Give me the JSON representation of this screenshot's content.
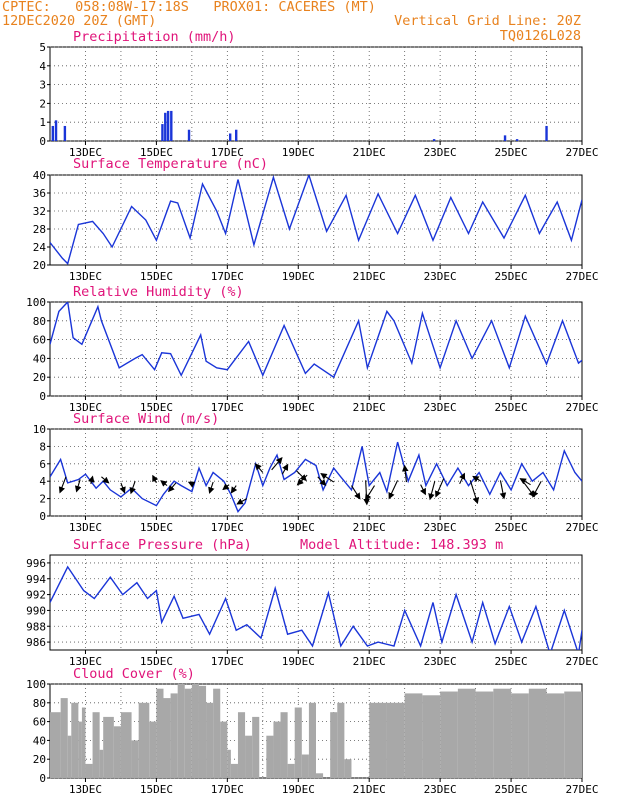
{
  "header": {
    "left_line1": "CPTEC:   058:08W-17:18S   PROX01: CACERES (MT)",
    "left_line2": "12DEC2020 20Z (GMT)",
    "right_line2": "Vertical Grid Line: 20Z",
    "right_line3": "TQ0126L028"
  },
  "colors": {
    "header": "#e8821e",
    "title": "#e0147a",
    "series": "#1a35d8",
    "cloud": "#a8a8a8",
    "arrow": "#000000"
  },
  "x_axis": {
    "ticks": [
      "13DEC",
      "15DEC",
      "17DEC",
      "19DEC",
      "21DEC",
      "23DEC",
      "25DEC",
      "27DEC"
    ],
    "days": [
      1,
      3,
      5,
      7,
      9,
      11,
      13,
      15
    ]
  },
  "chart_data": [
    {
      "type": "bar",
      "title": "Precipitation (mm/h)",
      "xlim": [
        0,
        15
      ],
      "ylim": [
        0,
        5
      ],
      "yticks": [
        0,
        1,
        2,
        3,
        4,
        5
      ],
      "x": [
        0.08,
        0.17,
        0.42,
        3.17,
        3.25,
        3.33,
        3.42,
        3.92,
        5.08,
        5.25,
        10.83,
        12.83,
        13.17,
        14.0
      ],
      "values": [
        0.8,
        1.1,
        0.8,
        0.9,
        1.5,
        1.6,
        1.6,
        0.6,
        0.4,
        0.6,
        0.1,
        0.3,
        0.1,
        0.8
      ]
    },
    {
      "type": "line",
      "title": "Surface Temperature (nC)",
      "xlim": [
        0,
        15
      ],
      "ylim": [
        20,
        40
      ],
      "yticks": [
        20,
        24,
        28,
        32,
        36,
        40
      ],
      "x": [
        0,
        0.35,
        0.5,
        0.8,
        1.2,
        1.5,
        1.75,
        2.3,
        2.7,
        3.0,
        3.4,
        3.6,
        3.95,
        4.3,
        4.7,
        4.95,
        5.3,
        5.75,
        6.3,
        6.75,
        7.3,
        7.8,
        8.35,
        8.7,
        9.25,
        9.8,
        10.3,
        10.8,
        11.3,
        11.8,
        12.2,
        12.8,
        13.4,
        13.8,
        14.3,
        14.7,
        15.0
      ],
      "y": [
        25,
        21.5,
        20.3,
        29,
        29.7,
        27,
        24,
        33,
        30,
        25.5,
        34.2,
        33.8,
        26,
        38,
        32,
        27,
        39,
        24.5,
        39.5,
        28,
        40,
        27.5,
        35.5,
        25.5,
        35.8,
        27,
        35.5,
        25.5,
        35,
        27,
        34,
        26,
        35.5,
        27,
        34,
        25.5,
        34.5
      ]
    },
    {
      "type": "line",
      "title": "Relative Humidity (%)",
      "xlim": [
        0,
        15
      ],
      "ylim": [
        0,
        100
      ],
      "yticks": [
        0,
        20,
        40,
        60,
        80,
        100
      ],
      "x": [
        0,
        0.25,
        0.5,
        0.65,
        0.9,
        1.35,
        1.45,
        1.95,
        2.4,
        2.6,
        2.95,
        3.15,
        3.4,
        3.7,
        4.25,
        4.4,
        4.7,
        5.0,
        5.6,
        6.0,
        6.6,
        7.2,
        7.45,
        8.0,
        8.7,
        8.95,
        9.5,
        9.7,
        10.2,
        10.5,
        11.0,
        11.45,
        11.9,
        12.45,
        12.95,
        13.4,
        14.0,
        14.45,
        14.9,
        15.0
      ],
      "y": [
        55,
        90,
        100,
        62,
        55,
        95,
        80,
        30,
        40,
        44,
        28,
        46,
        45,
        22,
        65,
        37,
        30,
        28,
        58,
        22,
        75,
        24,
        34,
        20,
        80,
        30,
        90,
        80,
        35,
        88,
        30,
        80,
        40,
        80,
        30,
        85,
        34,
        80,
        35,
        38
      ]
    },
    {
      "type": "line",
      "title": "Surface Wind (m/s)",
      "xlim": [
        0,
        15
      ],
      "ylim": [
        0,
        10
      ],
      "yticks": [
        0,
        2,
        4,
        6,
        8,
        10
      ],
      "x": [
        0,
        0.3,
        0.5,
        0.8,
        1.0,
        1.3,
        1.5,
        1.7,
        2.0,
        2.3,
        2.6,
        3.0,
        3.2,
        3.5,
        3.7,
        4.0,
        4.2,
        4.4,
        4.6,
        4.9,
        5.1,
        5.3,
        5.5,
        5.8,
        6.0,
        6.2,
        6.4,
        6.6,
        6.9,
        7.2,
        7.5,
        7.7,
        8.0,
        8.2,
        8.5,
        8.8,
        9.0,
        9.3,
        9.5,
        9.8,
        10.1,
        10.4,
        10.6,
        10.9,
        11.2,
        11.5,
        11.8,
        12.1,
        12.4,
        12.7,
        13.0,
        13.3,
        13.6,
        13.9,
        14.2,
        14.5,
        14.8,
        15.0
      ],
      "y": [
        4.5,
        6.5,
        3.8,
        4.2,
        4.8,
        3.2,
        4.0,
        3.0,
        2.2,
        3.2,
        2.0,
        1.2,
        2.5,
        4.0,
        3.5,
        2.8,
        5.5,
        3.5,
        5.0,
        4.0,
        2.5,
        0.5,
        1.5,
        6.0,
        3.5,
        5.5,
        7.0,
        4.2,
        5.0,
        6.5,
        5.8,
        3.0,
        5.5,
        4.5,
        3.0,
        8.0,
        3.5,
        5.0,
        2.8,
        8.5,
        4.0,
        7.0,
        3.5,
        6.0,
        3.5,
        5.5,
        3.5,
        5.0,
        2.5,
        5.0,
        3.0,
        6.0,
        4.0,
        5.0,
        3.0,
        7.5,
        5.0,
        4.0
      ]
    },
    {
      "type": "line",
      "title": "Surface Pressure (hPa)",
      "subtitle": "Model Altitude: 148.393 m",
      "xlim": [
        0,
        15
      ],
      "ylim": [
        985,
        997
      ],
      "yticks": [
        986,
        988,
        990,
        992,
        994,
        996
      ],
      "x": [
        0,
        0.5,
        0.95,
        1.25,
        1.7,
        2.05,
        2.45,
        2.75,
        3.0,
        3.15,
        3.5,
        3.75,
        4.2,
        4.5,
        4.95,
        5.25,
        5.55,
        5.95,
        6.35,
        6.7,
        7.1,
        7.4,
        7.85,
        8.2,
        8.55,
        8.95,
        9.25,
        9.7,
        10.0,
        10.45,
        10.8,
        11.05,
        11.45,
        11.9,
        12.2,
        12.55,
        12.95,
        13.3,
        13.7,
        14.1,
        14.5,
        14.9,
        15.0
      ],
      "y": [
        991,
        995.5,
        992.5,
        991.5,
        994.2,
        992.0,
        993.5,
        991.5,
        992.5,
        988.5,
        991.8,
        989.0,
        989.5,
        987.0,
        991.5,
        987.5,
        988.2,
        986.5,
        992.8,
        987.0,
        987.5,
        985.5,
        992.2,
        985.5,
        988.0,
        985.5,
        986.0,
        985.5,
        990.0,
        985.5,
        991.0,
        986.0,
        992.0,
        986.0,
        991.0,
        985.8,
        990.5,
        986.0,
        990.5,
        984.5,
        990.0,
        984.5,
        987.5
      ]
    },
    {
      "type": "area",
      "title": "Cloud Cover (%)",
      "xlim": [
        0,
        15
      ],
      "ylim": [
        0,
        100
      ],
      "yticks": [
        0,
        20,
        40,
        60,
        80,
        100
      ],
      "x": [
        0,
        0.3,
        0.5,
        0.6,
        0.8,
        0.9,
        1.0,
        1.2,
        1.4,
        1.5,
        1.8,
        2.0,
        2.3,
        2.5,
        2.8,
        3.0,
        3.2,
        3.4,
        3.6,
        3.8,
        4.0,
        4.2,
        4.4,
        4.6,
        4.8,
        5.0,
        5.1,
        5.3,
        5.5,
        5.7,
        5.9,
        6.1,
        6.3,
        6.5,
        6.7,
        6.9,
        7.1,
        7.3,
        7.5,
        7.7,
        7.9,
        8.1,
        8.3,
        8.5,
        8.7,
        9.0,
        9.5,
        10.0,
        10.5,
        11.0,
        11.5,
        12.0,
        12.5,
        13.0,
        13.5,
        14.0,
        14.5,
        15.0
      ],
      "y": [
        70,
        85,
        45,
        80,
        60,
        75,
        15,
        70,
        30,
        65,
        55,
        70,
        40,
        80,
        60,
        95,
        85,
        90,
        100,
        95,
        100,
        98,
        80,
        95,
        60,
        30,
        15,
        70,
        45,
        65,
        0,
        45,
        60,
        70,
        15,
        75,
        25,
        80,
        5,
        0,
        70,
        80,
        20,
        0,
        0,
        80,
        80,
        90,
        88,
        92,
        95,
        92,
        95,
        90,
        95,
        90,
        92,
        95
      ]
    },
    {
      "type": "scatter",
      "title": "Surface Wind vectors",
      "x": [
        0.45,
        0.85,
        1.15,
        1.45,
        2.0,
        2.4,
        3.0,
        3.3,
        3.55,
        4.05,
        4.6,
        5.05,
        5.25,
        5.55,
        6.0,
        6.25,
        6.55,
        6.95,
        7.25,
        7.55,
        8.0,
        8.5,
        8.9,
        9.15,
        9.8,
        10.05,
        10.45,
        10.85,
        11.1,
        11.55,
        11.85,
        12.15,
        12.7,
        13.35,
        13.55,
        13.85
      ],
      "y": [
        4.5,
        4.2,
        3.7,
        4.5,
        3.8,
        4.0,
        3.8,
        3.5,
        3.8,
        3.6,
        3.9,
        3.6,
        3.5,
        2.0,
        5.0,
        5.3,
        4.8,
        5.2,
        4.7,
        4.5,
        3.9,
        3.5,
        4.1,
        3.5,
        4.1,
        3.9,
        3.6,
        4.0,
        4.3,
        3.7,
        4.1,
        4.0,
        4.1,
        3.9,
        3.6,
        4.0
      ],
      "u": [
        -1.0,
        -0.6,
        0.3,
        1.2,
        0.6,
        -0.7,
        -0.6,
        -1.0,
        -1.2,
        -0.8,
        -0.6,
        -1.0,
        -0.8,
        -1.6,
        -1.2,
        1.7,
        0.9,
        1.6,
        -1.6,
        1.3,
        -2.1,
        1.4,
        0.2,
        -1.5,
        -1.4,
        -0.3,
        0.8,
        -0.8,
        -1.3,
        0.8,
        1.2,
        -1.3,
        0.6,
        1.8,
        -1.7,
        -1.4
      ],
      "v": [
        -2.6,
        -2.0,
        1.2,
        -1.0,
        -1.6,
        -2.0,
        1.2,
        0.8,
        -1.4,
        0.4,
        -1.8,
        -0.8,
        -1.2,
        -0.9,
        1.4,
        2.0,
        1.6,
        -1.6,
        -1.6,
        -1.4,
        1.4,
        -2.2,
        -4.0,
        -2.4,
        -3.0,
        2.7,
        -1.6,
        -3.0,
        -3.0,
        1.7,
        -3.8,
        0.8,
        -3.0,
        -2.4,
        1.0,
        -2.6
      ]
    }
  ]
}
